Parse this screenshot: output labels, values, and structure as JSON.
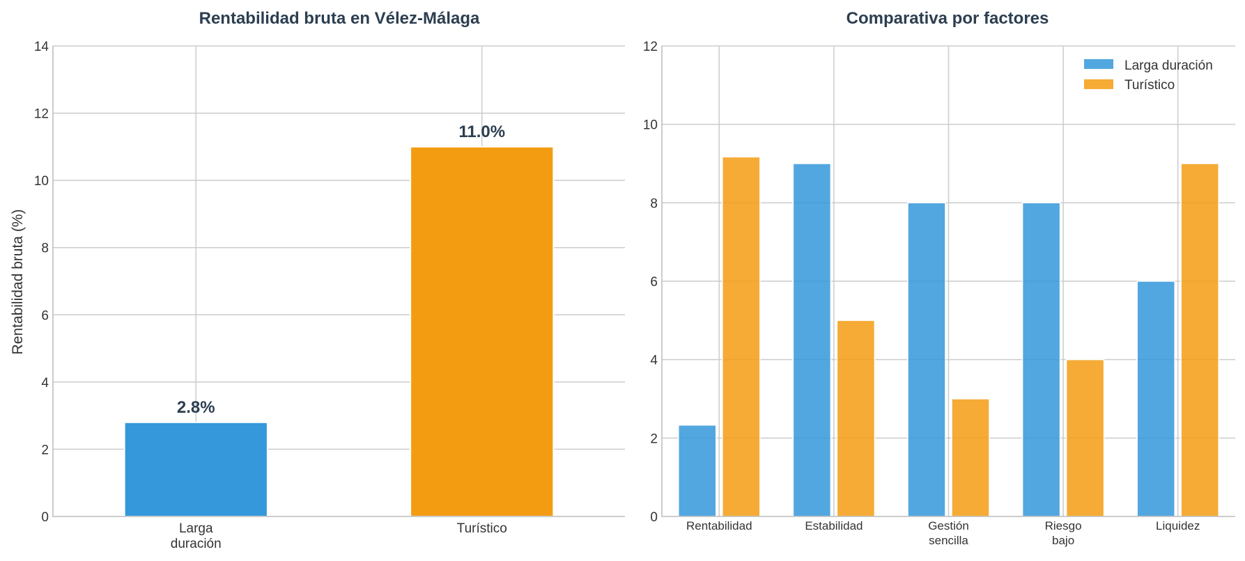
{
  "chart_data": [
    {
      "type": "bar",
      "title": "Rentabilidad bruta en Vélez-Málaga",
      "xlabel": "",
      "ylabel": "Rentabilidad bruta (%)",
      "ylim": [
        0,
        14
      ],
      "yticks": [
        0,
        2,
        4,
        6,
        8,
        10,
        12,
        14
      ],
      "grid": true,
      "categories": [
        [
          "Larga",
          "duración"
        ],
        [
          "Turístico"
        ]
      ],
      "values": [
        2.8,
        11.0
      ],
      "data_labels": [
        "2.8%",
        "11.0%"
      ],
      "colors": [
        "#3498db",
        "#f39c12"
      ]
    },
    {
      "type": "bar",
      "title": "Comparativa por factores",
      "xlabel": "",
      "ylabel": "",
      "ylim": [
        0,
        12
      ],
      "yticks": [
        0,
        2,
        4,
        6,
        8,
        10,
        12
      ],
      "grid": true,
      "legend_position": "top-right",
      "categories": [
        [
          "Rentabilidad"
        ],
        [
          "Estabilidad"
        ],
        [
          "Gestión",
          "sencilla"
        ],
        [
          "Riesgo",
          "bajo"
        ],
        [
          "Liquidez"
        ]
      ],
      "series": [
        {
          "name": "Larga duración",
          "color": "#3498db",
          "values": [
            2.33,
            9,
            8,
            8,
            6
          ]
        },
        {
          "name": "Turístico",
          "color": "#f39c12",
          "values": [
            9.17,
            5,
            3,
            4,
            9
          ]
        }
      ]
    }
  ]
}
